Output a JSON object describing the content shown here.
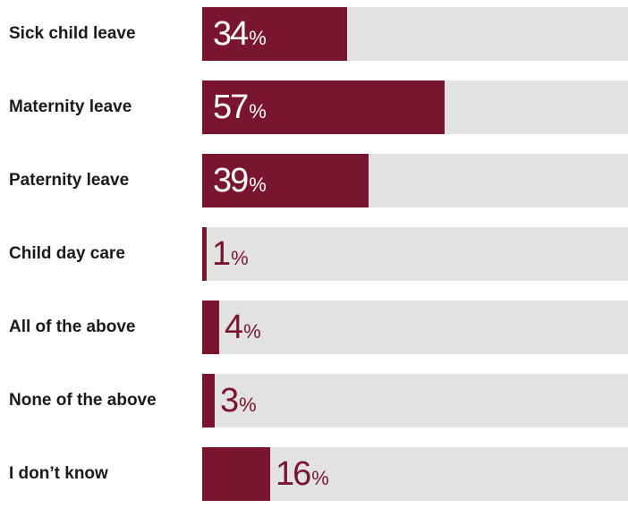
{
  "chart_data": {
    "type": "bar",
    "orientation": "horizontal",
    "categories": [
      "Sick child leave",
      "Maternity leave",
      "Paternity leave",
      "Child day care",
      "All of the above",
      "None of the above",
      "I don’t know"
    ],
    "values": [
      34,
      57,
      39,
      1,
      4,
      3,
      16
    ],
    "unit": "%",
    "xlim": [
      0,
      100
    ],
    "grid": false,
    "colors": {
      "bar": "#7a1530",
      "track": "#e2e2e2",
      "label_inside": "#ffffff",
      "label_outside": "#7a1530"
    }
  }
}
